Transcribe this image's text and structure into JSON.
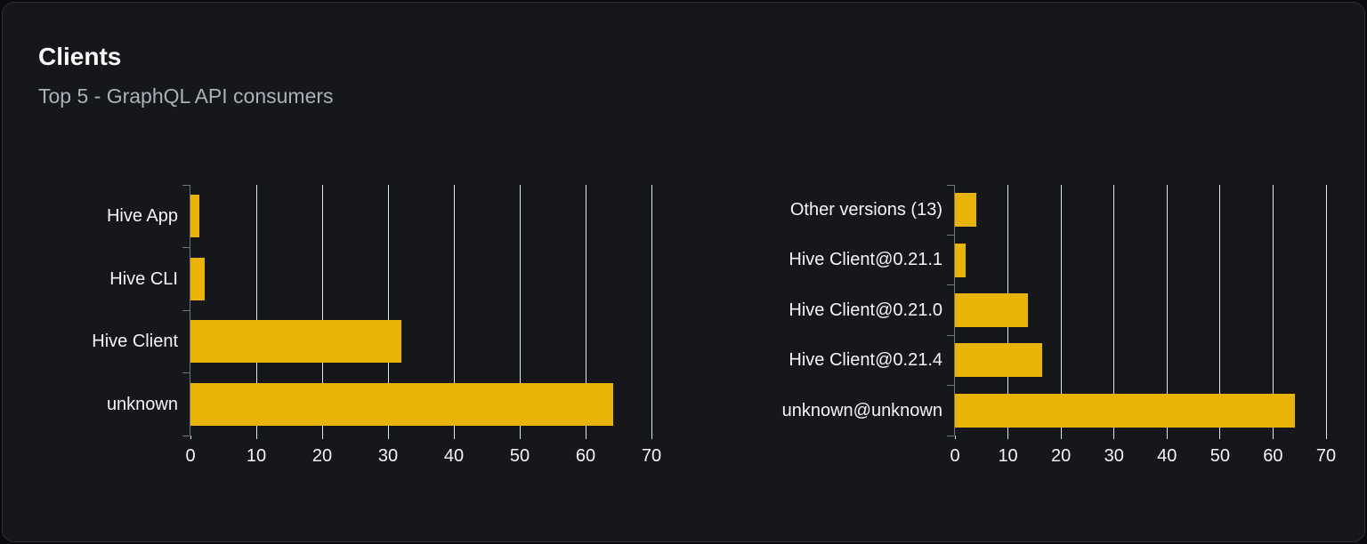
{
  "card": {
    "title": "Clients",
    "subtitle": "Top 5 - GraphQL API consumers"
  },
  "colors": {
    "bar": "#eab308",
    "grid": "#e2e5ea",
    "axis": "#70737a",
    "label": "#f5f5f6",
    "title": "#fafafa",
    "subtitle": "#adb0b8",
    "card_bg": "#16171b",
    "page_bg": "#0a0b0d",
    "card_border": "#2d2f35"
  },
  "chart_data": [
    {
      "type": "bar",
      "orientation": "horizontal",
      "title": "",
      "xlabel": "",
      "ylabel": "",
      "categories": [
        "Hive App",
        "Hive CLI",
        "Hive Client",
        "unknown"
      ],
      "values": [
        1.4,
        2.1,
        32,
        64.2
      ],
      "xlim": [
        0,
        70
      ],
      "xticks": [
        0,
        10,
        20,
        30,
        40,
        50,
        60,
        70
      ],
      "grid": "vertical",
      "legend": "none"
    },
    {
      "type": "bar",
      "orientation": "horizontal",
      "title": "",
      "xlabel": "",
      "ylabel": "",
      "categories": [
        "Other versions (13)",
        "Hive Client@0.21.1",
        "Hive Client@0.21.0",
        "Hive Client@0.21.4",
        "unknown@unknown"
      ],
      "values": [
        4,
        2,
        13.8,
        16.5,
        64.2
      ],
      "xlim": [
        0,
        70
      ],
      "xticks": [
        0,
        10,
        20,
        30,
        40,
        50,
        60,
        70
      ],
      "grid": "vertical",
      "legend": "none"
    }
  ]
}
